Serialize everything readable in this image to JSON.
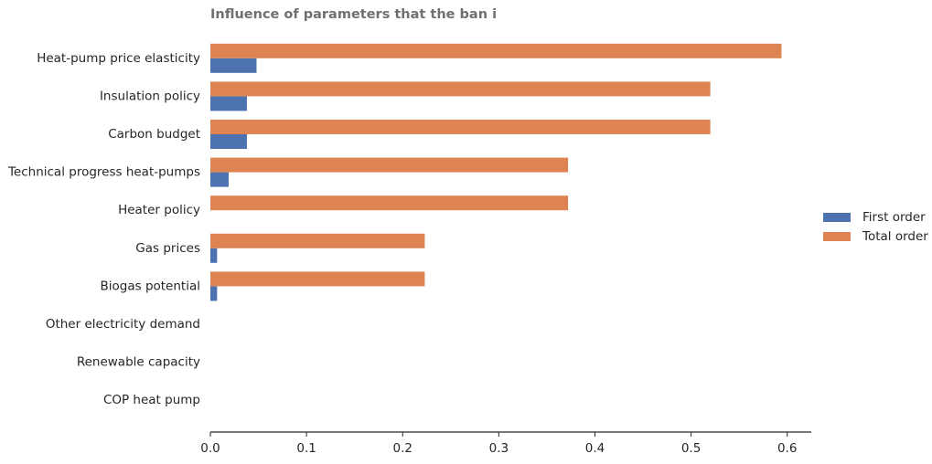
{
  "chart_data": {
    "type": "hbar",
    "title": "Influence of parameters that the ban i",
    "categories": [
      "Heat-pump price elasticity",
      "Insulation policy",
      "Carbon budget",
      "Technical progress heat-pumps",
      "Heater policy",
      "Gas prices",
      "Biogas potential",
      "Other electricity demand",
      "Renewable capacity",
      "COP heat pump"
    ],
    "series": [
      {
        "name": "First order",
        "color": "#4c72b0",
        "values": [
          0.048,
          0.038,
          0.038,
          0.019,
          0,
          0.007,
          0.007,
          0,
          0,
          0
        ]
      },
      {
        "name": "Total order",
        "color": "#dd8452",
        "values": [
          0.594,
          0.52,
          0.52,
          0.372,
          0.372,
          0.223,
          0.223,
          0,
          0,
          0
        ]
      }
    ],
    "xlim": [
      0,
      0.625
    ],
    "xticks": [
      {
        "value": 0,
        "label": "0.0"
      },
      0.1,
      0.2,
      0.3,
      0.4,
      0.5,
      {
        "value": 0.6,
        "label": "0.6"
      }
    ],
    "legend": "right"
  }
}
